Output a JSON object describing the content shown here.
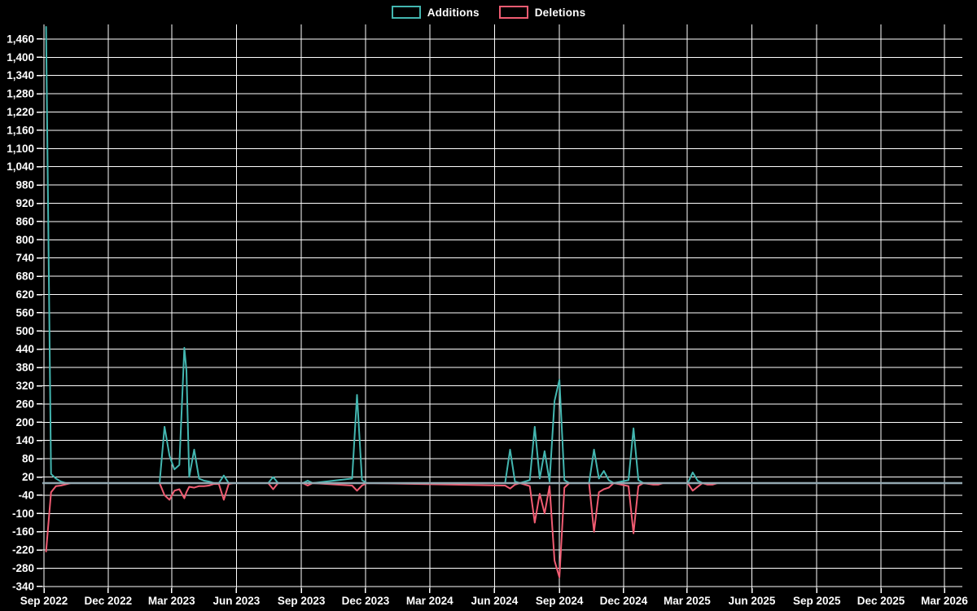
{
  "legend": {
    "items": [
      {
        "label": "Additions",
        "color": "#43b6b0"
      },
      {
        "label": "Deletions",
        "color": "#f05c72"
      }
    ]
  },
  "colors": {
    "background": "#000000",
    "grid": "#ffffff",
    "text": "#ffffff",
    "additions": "#43b6b0",
    "deletions": "#f05c72",
    "zero_line": "#93a8b1"
  },
  "chart_data": {
    "type": "line",
    "title": "",
    "xlabel": "",
    "ylabel": "",
    "legend_position": "top-center",
    "grid": true,
    "x_axis": {
      "start_date": "2022-09-01",
      "tick_interval_months": 3,
      "tick_labels": [
        "Sep 2022",
        "Dec 2022",
        "Mar 2023",
        "Jun 2023",
        "Sep 2023",
        "Dec 2023",
        "Mar 2024",
        "Jun 2024",
        "Sep 2024",
        "Dec 2024",
        "Mar 2025",
        "Jun 2025",
        "Sep 2025",
        "Dec 2025",
        "Mar 2026"
      ]
    },
    "y_axis": {
      "min": -340,
      "max": 1460,
      "step": 60,
      "plot_top_value": 1500,
      "plot_bottom_value": -340
    },
    "series_names": [
      "Additions",
      "Deletions"
    ],
    "rows_format": [
      "week_date",
      "additions",
      "deletions"
    ],
    "rows": [
      [
        "2022-09-04",
        1500,
        -225
      ],
      [
        "2022-09-11",
        30,
        -30
      ],
      [
        "2022-09-18",
        15,
        -10
      ],
      [
        "2022-09-25",
        5,
        -8
      ],
      [
        "2022-10-02",
        0,
        -4
      ],
      [
        "2022-10-09",
        0,
        0
      ],
      [
        "2023-02-12",
        0,
        0
      ],
      [
        "2023-02-19",
        185,
        -40
      ],
      [
        "2023-02-26",
        90,
        -55
      ],
      [
        "2023-03-05",
        45,
        -25
      ],
      [
        "2023-03-12",
        60,
        -20
      ],
      [
        "2023-03-19",
        445,
        -50
      ],
      [
        "2023-03-22",
        370,
        -30
      ],
      [
        "2023-03-26",
        20,
        -12
      ],
      [
        "2023-04-02",
        110,
        -15
      ],
      [
        "2023-04-09",
        15,
        -10
      ],
      [
        "2023-04-16",
        8,
        -10
      ],
      [
        "2023-04-23",
        5,
        -8
      ],
      [
        "2023-04-30",
        0,
        -3
      ],
      [
        "2023-05-07",
        0,
        -3
      ],
      [
        "2023-05-14",
        25,
        -55
      ],
      [
        "2023-05-21",
        0,
        -3
      ],
      [
        "2023-05-28",
        0,
        0
      ],
      [
        "2023-07-16",
        0,
        0
      ],
      [
        "2023-07-23",
        20,
        -20
      ],
      [
        "2023-07-30",
        0,
        0
      ],
      [
        "2023-09-03",
        0,
        0
      ],
      [
        "2023-09-10",
        8,
        -8
      ],
      [
        "2023-09-17",
        0,
        0
      ],
      [
        "2023-11-12",
        15,
        -8
      ],
      [
        "2023-11-19",
        290,
        -25
      ],
      [
        "2023-11-26",
        10,
        -8
      ],
      [
        "2023-12-03",
        0,
        0
      ],
      [
        "2024-06-16",
        0,
        -8
      ],
      [
        "2024-06-23",
        110,
        -18
      ],
      [
        "2024-06-30",
        5,
        -5
      ],
      [
        "2024-07-07",
        0,
        0
      ],
      [
        "2024-07-21",
        10,
        -10
      ],
      [
        "2024-07-28",
        185,
        -130
      ],
      [
        "2024-08-04",
        15,
        -35
      ],
      [
        "2024-08-11",
        105,
        -100
      ],
      [
        "2024-08-18",
        5,
        -10
      ],
      [
        "2024-08-25",
        270,
        -255
      ],
      [
        "2024-09-01",
        340,
        -310
      ],
      [
        "2024-09-08",
        10,
        -15
      ],
      [
        "2024-09-15",
        0,
        0
      ],
      [
        "2024-10-13",
        0,
        0
      ],
      [
        "2024-10-20",
        110,
        -160
      ],
      [
        "2024-10-27",
        15,
        -30
      ],
      [
        "2024-11-03",
        40,
        -20
      ],
      [
        "2024-11-10",
        10,
        -15
      ],
      [
        "2024-11-17",
        0,
        0
      ],
      [
        "2024-12-08",
        10,
        -10
      ],
      [
        "2024-12-15",
        180,
        -165
      ],
      [
        "2024-12-22",
        10,
        -10
      ],
      [
        "2024-12-29",
        0,
        0
      ],
      [
        "2025-01-12",
        0,
        -5
      ],
      [
        "2025-01-19",
        0,
        -5
      ],
      [
        "2025-01-26",
        0,
        0
      ],
      [
        "2025-03-02",
        0,
        0
      ],
      [
        "2025-03-09",
        35,
        -25
      ],
      [
        "2025-03-16",
        8,
        -12
      ],
      [
        "2025-03-23",
        0,
        0
      ],
      [
        "2025-03-30",
        0,
        -5
      ],
      [
        "2025-04-06",
        0,
        -5
      ],
      [
        "2025-04-13",
        0,
        0
      ],
      [
        "2026-03-22",
        0,
        0
      ]
    ]
  }
}
